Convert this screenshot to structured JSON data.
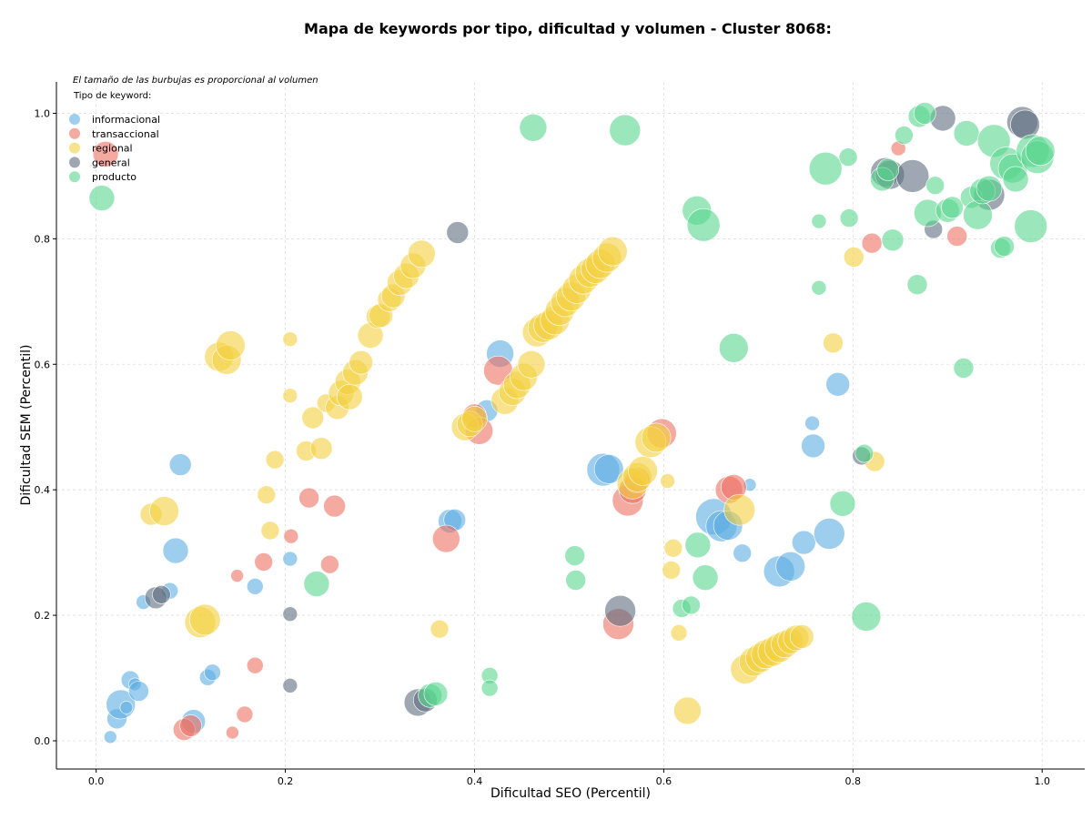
{
  "chart_data": {
    "type": "scatter",
    "title": "Mapa de keywords por tipo, dificultad y volumen - Cluster 8068:",
    "xlabel": "Dificultad SEO (Percentil)",
    "ylabel": "Dificultad SEM (Percentil)",
    "xlim": [
      -0.042,
      1.045
    ],
    "ylim": [
      -0.045,
      1.05
    ],
    "xticks": [
      0.0,
      0.2,
      0.4,
      0.6,
      0.8,
      1.0
    ],
    "yticks": [
      0.0,
      0.2,
      0.4,
      0.6,
      0.8,
      1.0
    ],
    "xtick_labels": [
      "0.0",
      "0.2",
      "0.4",
      "0.6",
      "0.8",
      "1.0"
    ],
    "ytick_labels": [
      "0.0",
      "0.2",
      "0.4",
      "0.6",
      "0.8",
      "1.0"
    ],
    "grid": true,
    "note": "El tamaño de las burbujas es proporcional al volumen",
    "legend_title": "Tipo de keyword:",
    "legend_position": "top-left",
    "series": [
      {
        "name": "informacional",
        "color": "#5DADE2",
        "points": [
          [
            0.015,
            0.006,
            7
          ],
          [
            0.022,
            0.035,
            11
          ],
          [
            0.026,
            0.058,
            16
          ],
          [
            0.032,
            0.053,
            7
          ],
          [
            0.036,
            0.097,
            10
          ],
          [
            0.041,
            0.09,
            7
          ],
          [
            0.045,
            0.079,
            11
          ],
          [
            0.05,
            0.221,
            8
          ],
          [
            0.078,
            0.239,
            9
          ],
          [
            0.084,
            0.303,
            14
          ],
          [
            0.089,
            0.44,
            12
          ],
          [
            0.103,
            0.031,
            13
          ],
          [
            0.118,
            0.101,
            9
          ],
          [
            0.123,
            0.109,
            9
          ],
          [
            0.168,
            0.246,
            9
          ],
          [
            0.205,
            0.29,
            8
          ],
          [
            0.374,
            0.35,
            13
          ],
          [
            0.379,
            0.352,
            12
          ],
          [
            0.413,
            0.526,
            12
          ],
          [
            0.427,
            0.617,
            15
          ],
          [
            0.536,
            0.432,
            18
          ],
          [
            0.542,
            0.433,
            16
          ],
          [
            0.653,
            0.357,
            20
          ],
          [
            0.661,
            0.342,
            17
          ],
          [
            0.668,
            0.343,
            16
          ],
          [
            0.683,
            0.299,
            10
          ],
          [
            0.691,
            0.408,
            7
          ],
          [
            0.722,
            0.27,
            17
          ],
          [
            0.734,
            0.278,
            16
          ],
          [
            0.748,
            0.316,
            13
          ],
          [
            0.757,
            0.506,
            8
          ],
          [
            0.758,
            0.47,
            13
          ],
          [
            0.775,
            0.33,
            17
          ],
          [
            0.784,
            0.568,
            13
          ]
        ]
      },
      {
        "name": "transaccional",
        "color": "#EC7063",
        "points": [
          [
            0.01,
            0.935,
            14
          ],
          [
            0.093,
            0.018,
            12
          ],
          [
            0.1,
            0.024,
            12
          ],
          [
            0.144,
            0.013,
            7
          ],
          [
            0.149,
            0.263,
            7
          ],
          [
            0.157,
            0.042,
            9
          ],
          [
            0.168,
            0.12,
            9
          ],
          [
            0.177,
            0.285,
            10
          ],
          [
            0.206,
            0.326,
            8
          ],
          [
            0.225,
            0.387,
            11
          ],
          [
            0.247,
            0.281,
            10
          ],
          [
            0.252,
            0.374,
            12
          ],
          [
            0.37,
            0.322,
            15
          ],
          [
            0.4,
            0.518,
            13
          ],
          [
            0.405,
            0.494,
            15
          ],
          [
            0.425,
            0.59,
            16
          ],
          [
            0.552,
            0.186,
            17
          ],
          [
            0.562,
            0.383,
            17
          ],
          [
            0.567,
            0.4,
            15
          ],
          [
            0.572,
            0.415,
            14
          ],
          [
            0.598,
            0.49,
            16
          ],
          [
            0.669,
            0.4,
            15
          ],
          [
            0.674,
            0.404,
            14
          ],
          [
            0.82,
            0.793,
            11
          ],
          [
            0.848,
            0.944,
            8
          ],
          [
            0.91,
            0.804,
            11
          ]
        ]
      },
      {
        "name": "regional",
        "color": "#F4D03F",
        "points": [
          [
            0.058,
            0.361,
            12
          ],
          [
            0.072,
            0.366,
            16
          ],
          [
            0.11,
            0.189,
            17
          ],
          [
            0.115,
            0.193,
            17
          ],
          [
            0.13,
            0.612,
            16
          ],
          [
            0.138,
            0.607,
            16
          ],
          [
            0.142,
            0.63,
            16
          ],
          [
            0.18,
            0.392,
            10
          ],
          [
            0.184,
            0.335,
            10
          ],
          [
            0.189,
            0.448,
            10
          ],
          [
            0.205,
            0.55,
            8
          ],
          [
            0.205,
            0.64,
            8
          ],
          [
            0.222,
            0.462,
            11
          ],
          [
            0.229,
            0.515,
            12
          ],
          [
            0.238,
            0.466,
            12
          ],
          [
            0.243,
            0.538,
            10
          ],
          [
            0.255,
            0.531,
            13
          ],
          [
            0.259,
            0.554,
            14
          ],
          [
            0.266,
            0.572,
            14
          ],
          [
            0.268,
            0.548,
            14
          ],
          [
            0.274,
            0.587,
            14
          ],
          [
            0.28,
            0.603,
            13
          ],
          [
            0.29,
            0.646,
            14
          ],
          [
            0.298,
            0.676,
            13
          ],
          [
            0.301,
            0.678,
            13
          ],
          [
            0.31,
            0.703,
            13
          ],
          [
            0.314,
            0.709,
            13
          ],
          [
            0.321,
            0.73,
            14
          ],
          [
            0.328,
            0.741,
            14
          ],
          [
            0.335,
            0.757,
            14
          ],
          [
            0.344,
            0.776,
            15
          ],
          [
            0.363,
            0.178,
            10
          ],
          [
            0.39,
            0.5,
            15
          ],
          [
            0.395,
            0.505,
            14
          ],
          [
            0.4,
            0.513,
            14
          ],
          [
            0.432,
            0.542,
            15
          ],
          [
            0.44,
            0.556,
            15
          ],
          [
            0.445,
            0.567,
            15
          ],
          [
            0.452,
            0.58,
            15
          ],
          [
            0.46,
            0.6,
            15
          ],
          [
            0.466,
            0.651,
            16
          ],
          [
            0.472,
            0.658,
            16
          ],
          [
            0.478,
            0.662,
            16
          ],
          [
            0.485,
            0.67,
            16
          ],
          [
            0.49,
            0.685,
            16
          ],
          [
            0.496,
            0.699,
            16
          ],
          [
            0.502,
            0.708,
            16
          ],
          [
            0.508,
            0.72,
            16
          ],
          [
            0.515,
            0.735,
            16
          ],
          [
            0.522,
            0.746,
            16
          ],
          [
            0.528,
            0.752,
            16
          ],
          [
            0.533,
            0.76,
            16
          ],
          [
            0.54,
            0.77,
            16
          ],
          [
            0.546,
            0.78,
            16
          ],
          [
            0.567,
            0.41,
            17
          ],
          [
            0.572,
            0.42,
            16
          ],
          [
            0.578,
            0.43,
            16
          ],
          [
            0.586,
            0.476,
            17
          ],
          [
            0.592,
            0.483,
            16
          ],
          [
            0.604,
            0.414,
            8
          ],
          [
            0.608,
            0.272,
            10
          ],
          [
            0.61,
            0.307,
            10
          ],
          [
            0.616,
            0.172,
            9
          ],
          [
            0.625,
            0.048,
            15
          ],
          [
            0.68,
            0.368,
            17
          ],
          [
            0.686,
            0.114,
            16
          ],
          [
            0.695,
            0.126,
            16
          ],
          [
            0.702,
            0.132,
            16
          ],
          [
            0.708,
            0.138,
            16
          ],
          [
            0.715,
            0.142,
            16
          ],
          [
            0.722,
            0.148,
            16
          ],
          [
            0.728,
            0.154,
            15
          ],
          [
            0.734,
            0.159,
            14
          ],
          [
            0.74,
            0.164,
            14
          ],
          [
            0.746,
            0.166,
            13
          ],
          [
            0.779,
            0.634,
            11
          ],
          [
            0.801,
            0.771,
            11
          ],
          [
            0.823,
            0.445,
            11
          ]
        ]
      },
      {
        "name": "general",
        "color": "#5D6D7E",
        "points": [
          [
            0.063,
            0.228,
            12
          ],
          [
            0.069,
            0.233,
            10
          ],
          [
            0.205,
            0.202,
            8
          ],
          [
            0.205,
            0.088,
            8
          ],
          [
            0.34,
            0.061,
            15
          ],
          [
            0.348,
            0.065,
            13
          ],
          [
            0.382,
            0.81,
            12
          ],
          [
            0.554,
            0.207,
            17
          ],
          [
            0.809,
            0.454,
            10
          ],
          [
            0.834,
            0.906,
            16
          ],
          [
            0.839,
            0.902,
            16
          ],
          [
            0.863,
            0.9,
            18
          ],
          [
            0.885,
            0.815,
            10
          ],
          [
            0.895,
            0.992,
            14
          ],
          [
            0.944,
            0.87,
            17
          ],
          [
            0.979,
            0.986,
            17
          ],
          [
            0.982,
            0.982,
            16
          ]
        ]
      },
      {
        "name": "producto",
        "color": "#58D68D",
        "points": [
          [
            0.006,
            0.865,
            14
          ],
          [
            0.233,
            0.25,
            14
          ],
          [
            0.353,
            0.072,
            13
          ],
          [
            0.359,
            0.075,
            13
          ],
          [
            0.416,
            0.104,
            9
          ],
          [
            0.416,
            0.084,
            9
          ],
          [
            0.462,
            0.977,
            15
          ],
          [
            0.506,
            0.295,
            11
          ],
          [
            0.507,
            0.256,
            11
          ],
          [
            0.559,
            0.973,
            17
          ],
          [
            0.619,
            0.211,
            10
          ],
          [
            0.629,
            0.216,
            10
          ],
          [
            0.636,
            0.312,
            14
          ],
          [
            0.644,
            0.26,
            14
          ],
          [
            0.635,
            0.845,
            16
          ],
          [
            0.642,
            0.822,
            18
          ],
          [
            0.674,
            0.626,
            16
          ],
          [
            0.764,
            0.828,
            8
          ],
          [
            0.764,
            0.722,
            8
          ],
          [
            0.771,
            0.912,
            18
          ],
          [
            0.789,
            0.378,
            14
          ],
          [
            0.795,
            0.93,
            10
          ],
          [
            0.796,
            0.833,
            10
          ],
          [
            0.814,
            0.198,
            16
          ],
          [
            0.812,
            0.458,
            10
          ],
          [
            0.831,
            0.895,
            13
          ],
          [
            0.837,
            0.91,
            12
          ],
          [
            0.842,
            0.798,
            12
          ],
          [
            0.854,
            0.965,
            10
          ],
          [
            0.868,
            0.727,
            11
          ],
          [
            0.87,
            0.995,
            12
          ],
          [
            0.876,
            1.0,
            12
          ],
          [
            0.879,
            0.841,
            15
          ],
          [
            0.887,
            0.885,
            10
          ],
          [
            0.9,
            0.845,
            13
          ],
          [
            0.905,
            0.85,
            12
          ],
          [
            0.917,
            0.594,
            11
          ],
          [
            0.92,
            0.968,
            14
          ],
          [
            0.925,
            0.866,
            12
          ],
          [
            0.932,
            0.838,
            16
          ],
          [
            0.937,
            0.876,
            14
          ],
          [
            0.944,
            0.88,
            14
          ],
          [
            0.949,
            0.956,
            18
          ],
          [
            0.956,
            0.785,
            11
          ],
          [
            0.96,
            0.788,
            11
          ],
          [
            0.962,
            0.92,
            18
          ],
          [
            0.969,
            0.912,
            16
          ],
          [
            0.972,
            0.895,
            14
          ],
          [
            0.988,
            0.82,
            18
          ],
          [
            0.99,
            0.94,
            18
          ],
          [
            0.995,
            0.93,
            18
          ],
          [
            0.998,
            0.94,
            16
          ]
        ]
      }
    ]
  }
}
